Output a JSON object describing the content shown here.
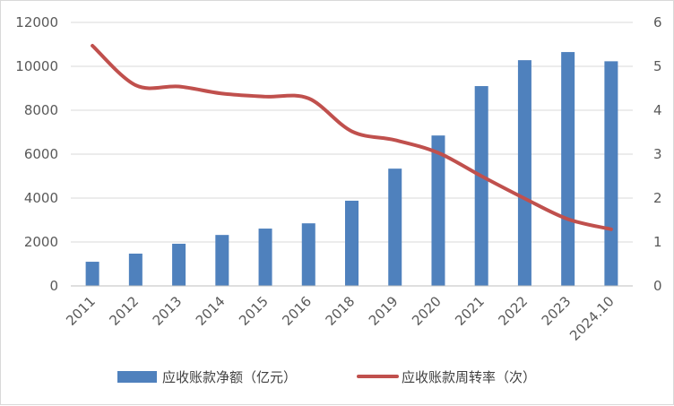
{
  "chart_data": {
    "type": "bar+line",
    "title": "",
    "categories": [
      "2011",
      "2012",
      "2013",
      "2014",
      "2015",
      "2016",
      "2018",
      "2019",
      "2020",
      "2021",
      "2022",
      "2023",
      "2024.10"
    ],
    "series": [
      {
        "name": "应收账款净额（亿元）",
        "type": "bar",
        "axis": "left",
        "color": "#4f81bd",
        "values": [
          1100,
          1470,
          1920,
          2320,
          2610,
          2850,
          3880,
          5340,
          6850,
          9100,
          10280,
          10650,
          10230
        ]
      },
      {
        "name": "应收账款周转率（次）",
        "type": "line",
        "axis": "right",
        "color": "#c0504d",
        "values": [
          5.47,
          4.57,
          4.54,
          4.38,
          4.31,
          4.27,
          3.52,
          3.32,
          3.03,
          2.5,
          1.99,
          1.52,
          1.29
        ]
      }
    ],
    "y_left": {
      "min": 0,
      "max": 12000,
      "step": 2000,
      "ticks": [
        "0",
        "2000",
        "4000",
        "6000",
        "8000",
        "10000",
        "12000"
      ]
    },
    "y_right": {
      "min": 0,
      "max": 6,
      "step": 1,
      "ticks": [
        "0",
        "1",
        "2",
        "3",
        "4",
        "5",
        "6"
      ]
    },
    "grid": true,
    "legend": {
      "position": "bottom-center"
    }
  }
}
